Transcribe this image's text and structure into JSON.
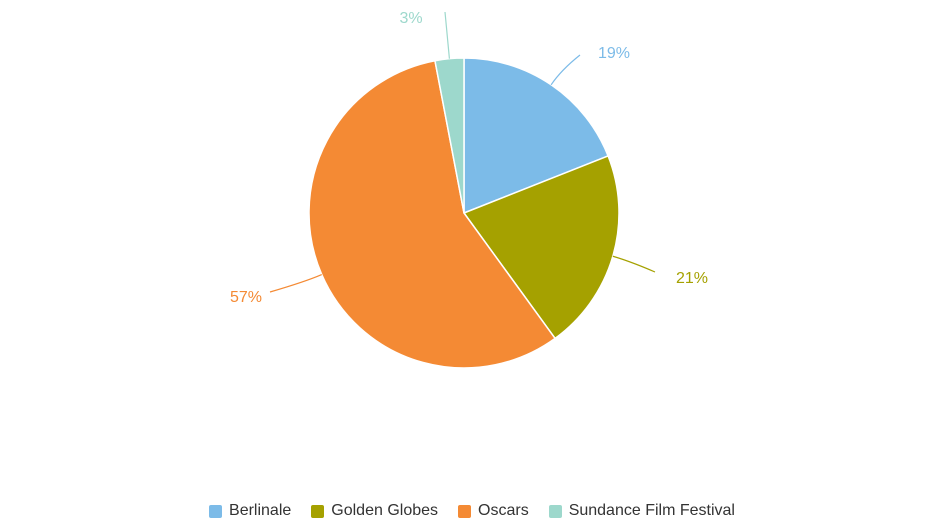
{
  "chart_data": {
    "type": "pie",
    "title": "",
    "legend_position": "bottom-center",
    "slices": [
      {
        "name": "Berlinale",
        "value": 19,
        "label": "19%",
        "color": "#7cbbe8"
      },
      {
        "name": "Golden Globes",
        "value": 21,
        "label": "21%",
        "color": "#a5a100"
      },
      {
        "name": "Oscars",
        "value": 57,
        "label": "57%",
        "color": "#f48a34"
      },
      {
        "name": "Sundance Film Festival",
        "value": 3,
        "label": "3%",
        "color": "#9dd8cc"
      }
    ]
  }
}
